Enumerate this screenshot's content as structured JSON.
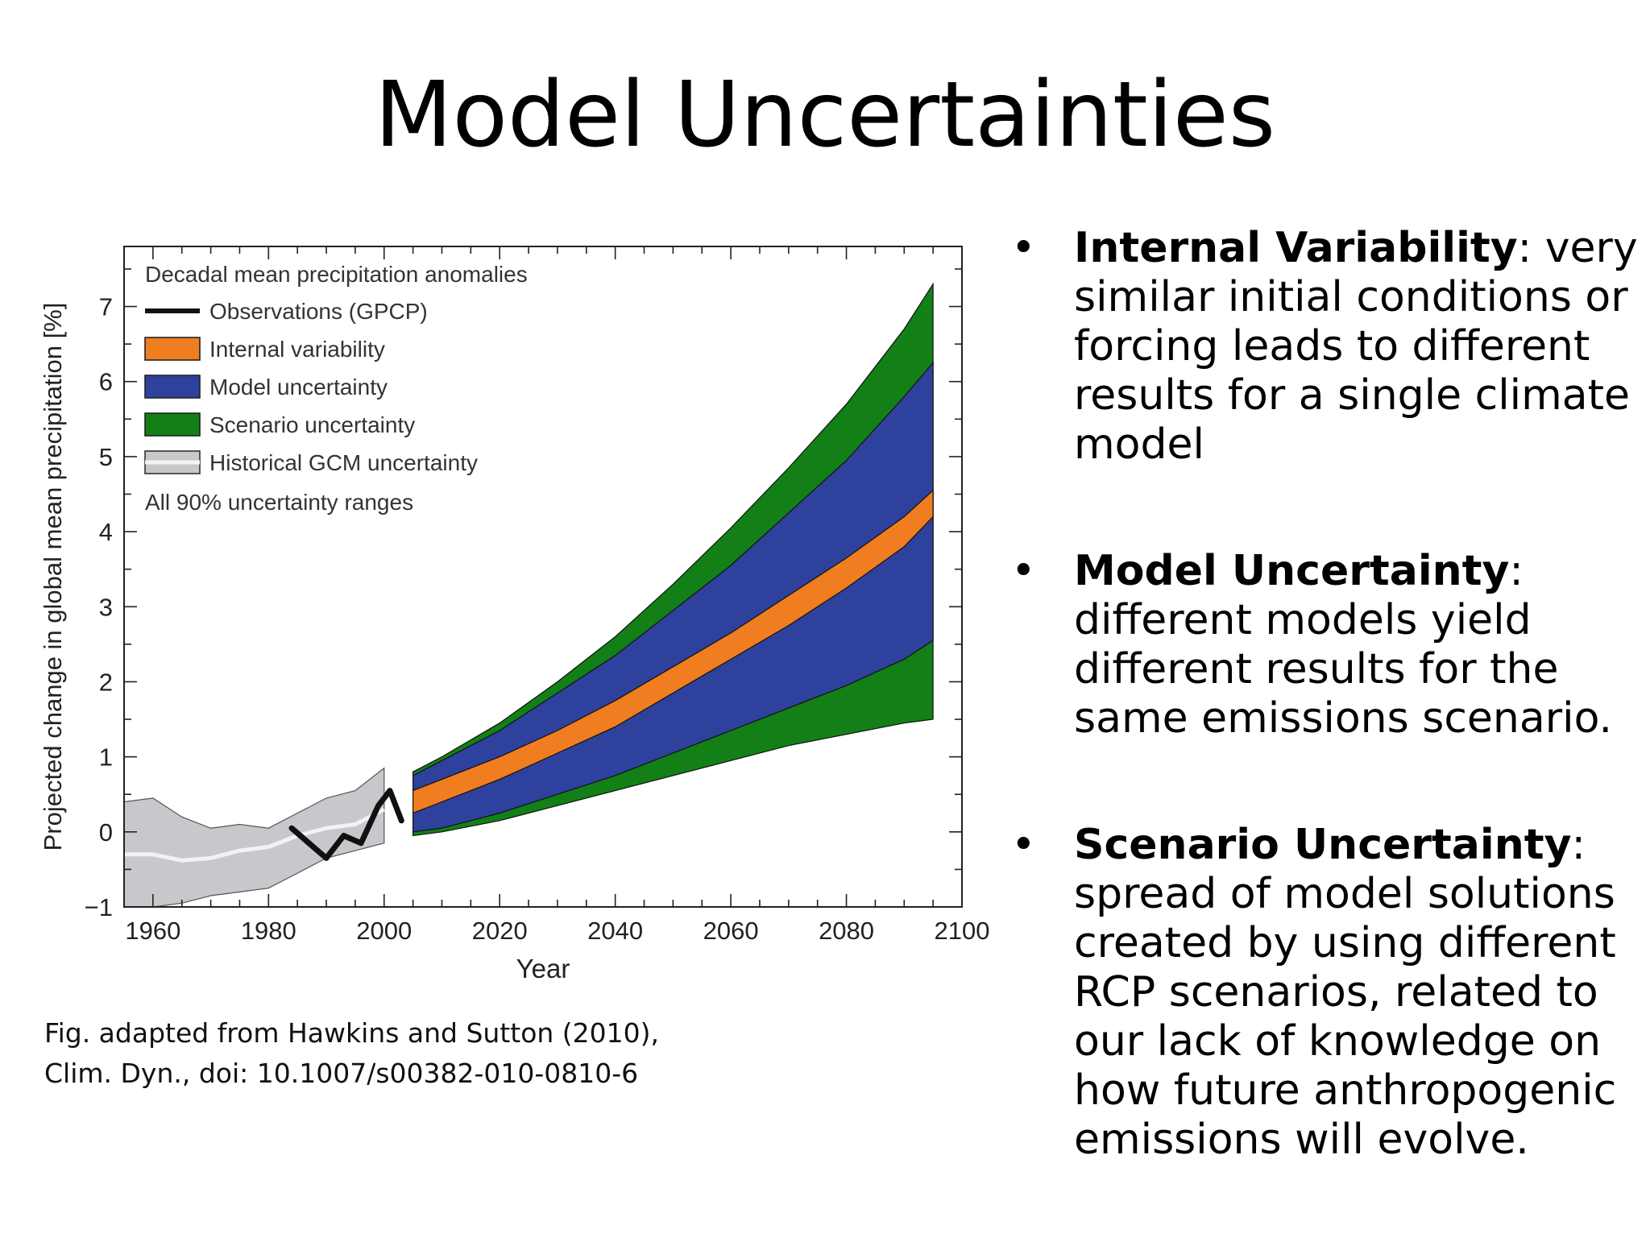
{
  "slide": {
    "title": "Model Uncertainties",
    "caption_lines": [
      "Fig. adapted from Hawkins and Sutton (2010),",
      "Clim. Dyn., doi: 10.1007/s00382-010-0810-6"
    ],
    "bullets": [
      {
        "term": "Internal Variability",
        "sep": ":",
        "text": " very similar initial conditions or forcing leads to different results for a single climate model"
      },
      {
        "term": "Model Uncertainty",
        "sep": ":",
        "text": " different models yield different results for the same emissions scenario."
      },
      {
        "term": "Scenario Uncertainty",
        "sep": ":",
        "text": " spread of model solutions created by using different RCP scenarios, related to our lack of knowledge on how future anthropogenic emissions will evolve."
      }
    ]
  },
  "chart_data": {
    "type": "area",
    "title": "Decadal mean precipitation anomalies",
    "xlabel": "Year",
    "ylabel": "Projected change in global mean precipitation  [%]",
    "xlim": [
      1955,
      2100
    ],
    "ylim": [
      -1,
      7.8
    ],
    "x_ticks": [
      1960,
      1980,
      2000,
      2020,
      2040,
      2060,
      2080,
      2100
    ],
    "y_ticks": [
      -1,
      0,
      1,
      2,
      3,
      4,
      5,
      6,
      7
    ],
    "grid": false,
    "legend_position": "top-left",
    "legend": [
      {
        "label": "Observations (GPCP)",
        "kind": "line",
        "color": "#111111"
      },
      {
        "label": "Internal variability",
        "kind": "box",
        "color": "#f07d1f"
      },
      {
        "label": "Model uncertainty",
        "kind": "box",
        "color": "#2e419c"
      },
      {
        "label": "Scenario uncertainty",
        "kind": "box",
        "color": "#128016"
      },
      {
        "label": "Historical GCM uncertainty",
        "kind": "hist",
        "color": "#c8c8cc"
      }
    ],
    "note": "All 90% uncertainty ranges",
    "historical": {
      "years": [
        1955,
        1960,
        1965,
        1970,
        1975,
        1980,
        1985,
        1990,
        1995,
        2000
      ],
      "mean": [
        -0.3,
        -0.3,
        -0.38,
        -0.35,
        -0.25,
        -0.2,
        -0.05,
        0.05,
        0.1,
        0.3
      ],
      "lower": [
        -1.0,
        -1.0,
        -0.95,
        -0.85,
        -0.8,
        -0.75,
        -0.55,
        -0.35,
        -0.25,
        -0.15
      ],
      "upper": [
        0.4,
        0.45,
        0.2,
        0.05,
        0.1,
        0.05,
        0.25,
        0.45,
        0.55,
        0.85
      ],
      "color": "#c8c8cc",
      "mean_color": "#f2f2f4"
    },
    "observations": {
      "years": [
        1984,
        1987,
        1990,
        1993,
        1996,
        1999,
        2001,
        2003
      ],
      "values": [
        0.05,
        -0.15,
        -0.35,
        -0.05,
        -0.15,
        0.35,
        0.55,
        0.15
      ],
      "color": "#111111"
    },
    "projection": {
      "years": [
        2005,
        2010,
        2020,
        2030,
        2040,
        2050,
        2060,
        2070,
        2080,
        2090,
        2095
      ],
      "scenario_upper": [
        0.8,
        1.0,
        1.45,
        2.0,
        2.6,
        3.3,
        4.05,
        4.85,
        5.7,
        6.7,
        7.3
      ],
      "model_upper": [
        0.75,
        0.95,
        1.35,
        1.85,
        2.35,
        2.95,
        3.55,
        4.25,
        4.95,
        5.8,
        6.25
      ],
      "internal_upper": [
        0.55,
        0.7,
        1.0,
        1.35,
        1.75,
        2.2,
        2.65,
        3.15,
        3.65,
        4.2,
        4.55
      ],
      "internal_lower": [
        0.25,
        0.4,
        0.7,
        1.05,
        1.4,
        1.85,
        2.3,
        2.75,
        3.25,
        3.8,
        4.2
      ],
      "model_lower": [
        0.0,
        0.05,
        0.25,
        0.5,
        0.75,
        1.05,
        1.35,
        1.65,
        1.95,
        2.3,
        2.55
      ],
      "scenario_lower": [
        -0.05,
        0.0,
        0.15,
        0.35,
        0.55,
        0.75,
        0.95,
        1.15,
        1.3,
        1.45,
        1.5
      ],
      "colors": {
        "scenario": "#128016",
        "model": "#2e419c",
        "internal": "#f07d1f"
      }
    }
  }
}
